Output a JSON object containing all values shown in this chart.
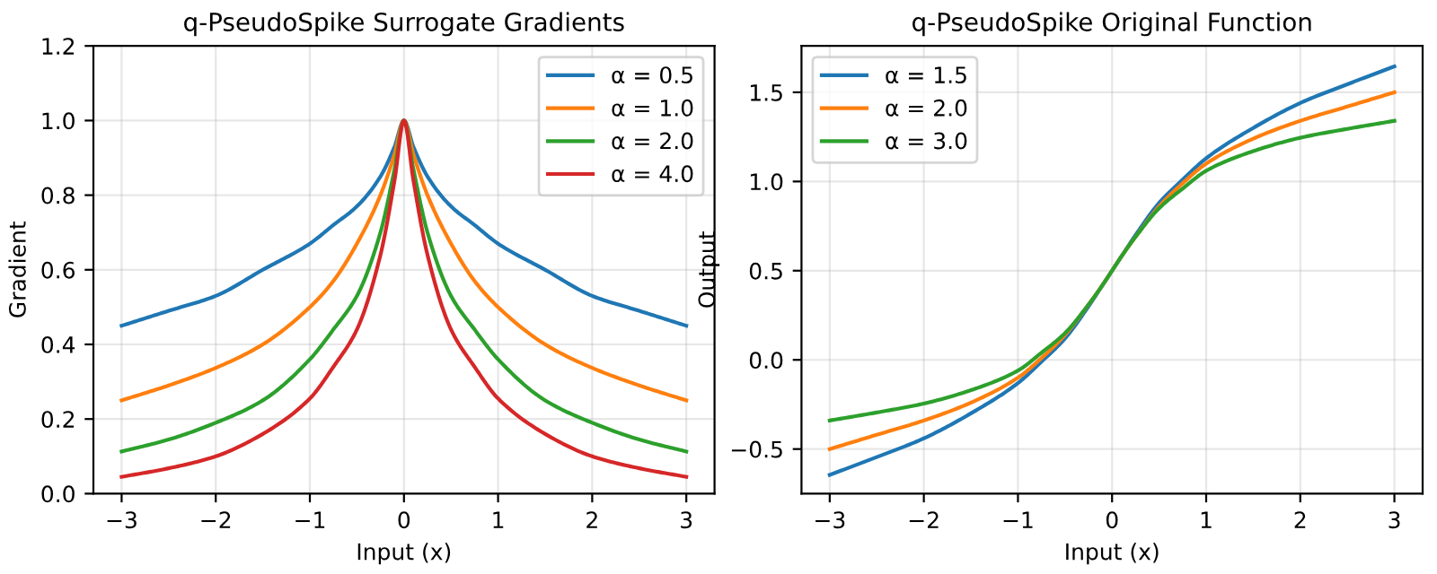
{
  "chart_data": [
    {
      "type": "line",
      "title": "q-PseudoSpike Surrogate Gradients",
      "xlabel": "Input (x)",
      "ylabel": "Gradient",
      "x": [
        -3,
        -2.5,
        -2,
        -1.5,
        -1,
        -0.75,
        -0.5,
        -0.25,
        -0.1,
        0,
        0.1,
        0.25,
        0.5,
        0.75,
        1,
        1.5,
        2,
        2.5,
        3
      ],
      "xlim": [
        -3.3,
        3.3
      ],
      "ylim": [
        0,
        1.2
      ],
      "xticks": [
        {
          "value": -3,
          "label": "−3"
        },
        {
          "value": -2,
          "label": "−2"
        },
        {
          "value": -1,
          "label": "−1"
        },
        0,
        1,
        2,
        3
      ],
      "yticks": [
        {
          "value": 0,
          "label": "0.0"
        },
        0.2,
        0.4,
        0.6,
        0.8,
        {
          "value": 1,
          "label": "1.0"
        },
        1.2
      ],
      "grid": true,
      "legend": "top right",
      "series": [
        {
          "name": "α = 0.5",
          "color": "#1f77b4",
          "values": [
            0.45,
            0.49,
            0.53,
            0.6,
            0.67,
            0.72,
            0.77,
            0.85,
            0.93,
            1.0,
            0.93,
            0.85,
            0.77,
            0.72,
            0.67,
            0.6,
            0.53,
            0.49,
            0.45
          ]
        },
        {
          "name": "α = 1.0",
          "color": "#ff7f0e",
          "values": [
            0.25,
            0.29,
            0.337,
            0.4,
            0.5,
            0.57,
            0.67,
            0.8,
            0.91,
            1.0,
            0.91,
            0.8,
            0.67,
            0.57,
            0.5,
            0.4,
            0.337,
            0.29,
            0.25
          ]
        },
        {
          "name": "α = 2.0",
          "color": "#2ca02c",
          "values": [
            0.113,
            0.145,
            0.19,
            0.25,
            0.36,
            0.44,
            0.53,
            0.7,
            0.87,
            1.0,
            0.87,
            0.7,
            0.53,
            0.44,
            0.36,
            0.25,
            0.19,
            0.145,
            0.113
          ]
        },
        {
          "name": "α = 4.0",
          "color": "#d62728",
          "values": [
            0.045,
            0.068,
            0.1,
            0.16,
            0.255,
            0.34,
            0.44,
            0.64,
            0.84,
            1.0,
            0.84,
            0.64,
            0.44,
            0.34,
            0.255,
            0.16,
            0.1,
            0.068,
            0.045
          ]
        }
      ]
    },
    {
      "type": "line",
      "title": "q-PseudoSpike Original Function",
      "xlabel": "Input (x)",
      "ylabel": "Output",
      "x": [
        -3,
        -2.5,
        -2,
        -1.5,
        -1,
        -0.75,
        -0.5,
        -0.25,
        -0.1,
        0,
        0.1,
        0.25,
        0.5,
        0.75,
        1,
        1.5,
        2,
        2.5,
        3
      ],
      "xlim": [
        -3.3,
        3.3
      ],
      "ylim": [
        -0.75,
        1.76
      ],
      "xticks": [
        {
          "value": -3,
          "label": "−3"
        },
        {
          "value": -2,
          "label": "−2"
        },
        {
          "value": -1,
          "label": "−1"
        },
        0,
        1,
        2,
        3
      ],
      "yticks": [
        {
          "value": -0.5,
          "label": "−0.5"
        },
        {
          "value": 0,
          "label": "0.0"
        },
        0.5,
        {
          "value": 1,
          "label": "1.0"
        },
        1.5
      ],
      "grid": true,
      "legend": "top left",
      "series": [
        {
          "name": "α = 1.5",
          "color": "#1f77b4",
          "values": [
            -0.645,
            -0.545,
            -0.44,
            -0.3,
            -0.13,
            -0.01,
            0.12,
            0.3,
            0.42,
            0.5,
            0.58,
            0.7,
            0.88,
            1.01,
            1.13,
            1.3,
            1.44,
            1.545,
            1.645
          ]
        },
        {
          "name": "α = 2.0",
          "color": "#ff7f0e",
          "values": [
            -0.5,
            -0.42,
            -0.34,
            -0.24,
            -0.1,
            0.01,
            0.14,
            0.31,
            0.42,
            0.5,
            0.58,
            0.69,
            0.86,
            0.99,
            1.1,
            1.24,
            1.34,
            1.42,
            1.5
          ]
        },
        {
          "name": "α = 3.0",
          "color": "#2ca02c",
          "values": [
            -0.34,
            -0.295,
            -0.245,
            -0.17,
            -0.06,
            0.04,
            0.15,
            0.31,
            0.42,
            0.5,
            0.58,
            0.69,
            0.85,
            0.96,
            1.06,
            1.17,
            1.245,
            1.295,
            1.34
          ]
        }
      ]
    }
  ]
}
